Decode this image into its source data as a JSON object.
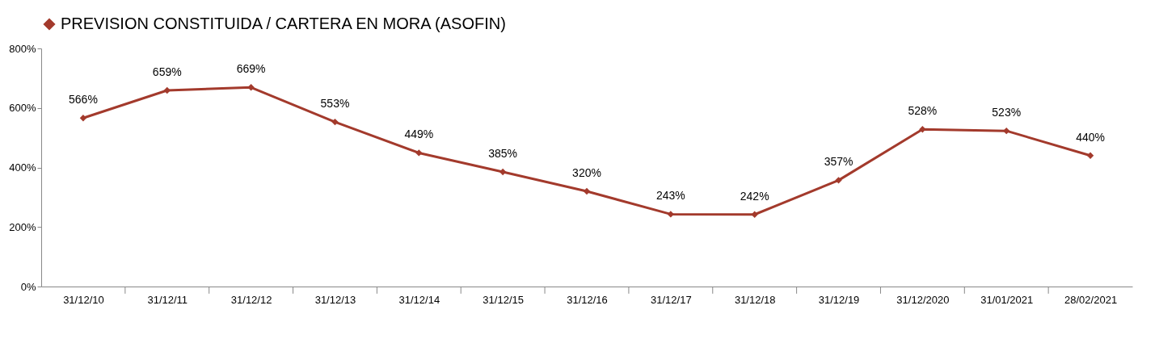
{
  "chart_data": {
    "type": "line",
    "categories": [
      "31/12/10",
      "31/12/11",
      "31/12/12",
      "31/12/13",
      "31/12/14",
      "31/12/15",
      "31/12/16",
      "31/12/17",
      "31/12/18",
      "31/12/19",
      "31/12/2020",
      "31/01/2021",
      "28/02/2021"
    ],
    "series": [
      {
        "name": "PREVISION CONSTITUIDA / CARTERA EN MORA (ASOFIN)",
        "color": "#a33a2c",
        "values": [
          566,
          659,
          669,
          553,
          449,
          385,
          320,
          243,
          242,
          357,
          528,
          523,
          440
        ],
        "value_labels": [
          "566%",
          "659%",
          "669%",
          "553%",
          "449%",
          "385%",
          "320%",
          "243%",
          "242%",
          "357%",
          "528%",
          "523%",
          "440%"
        ]
      }
    ],
    "ylim": [
      0,
      800
    ],
    "yticks": [
      {
        "value": 0,
        "label": "0%"
      },
      {
        "value": 200,
        "label": "200%"
      },
      {
        "value": 400,
        "label": "400%"
      },
      {
        "value": 600,
        "label": "600%"
      },
      {
        "value": 800,
        "label": "800%"
      }
    ],
    "grid": false,
    "legend": "top",
    "marker": "diamond",
    "line_style": "solid"
  }
}
